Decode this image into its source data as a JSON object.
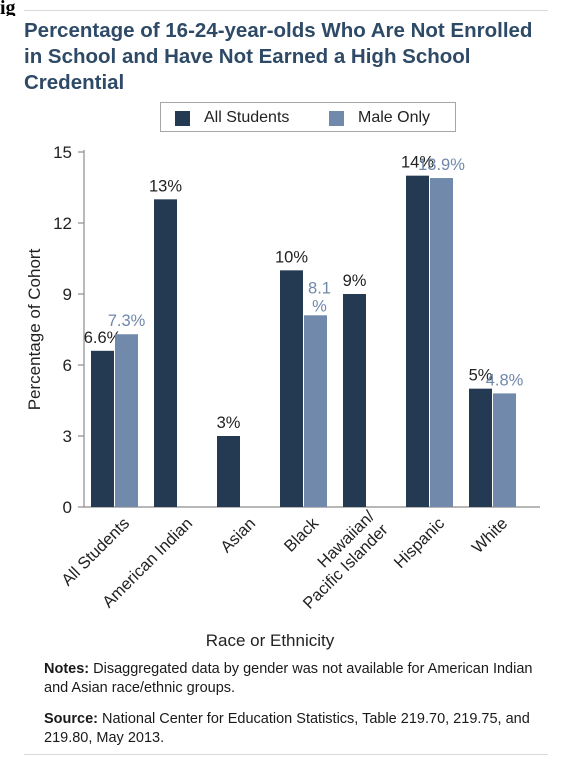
{
  "chart_data": {
    "type": "bar",
    "title": "Percentage of 16-24-year-olds Who Are Not Enrolled in School and Have Not Earned a High School Credential",
    "xlabel": "Race or Ethnicity",
    "ylabel": "Percentage of Cohort",
    "ylim": [
      0,
      15
    ],
    "yticks": [
      0,
      3,
      6,
      9,
      12,
      15
    ],
    "ytick_labels": [
      "0",
      "3",
      "6",
      "9",
      "12",
      "15"
    ],
    "grid": false,
    "legend_position": "top",
    "categories": [
      "All Students",
      "American Indian",
      "Asian",
      "Black",
      "Hawaiian/ Pacific Islander",
      "Hispanic",
      "White"
    ],
    "series": [
      {
        "name": "All Students",
        "color": "#243a52",
        "values": [
          6.6,
          13,
          3,
          10,
          9,
          14,
          5
        ],
        "labels": [
          "6.6%",
          "13%",
          "3%",
          "10%",
          "9%",
          "14%",
          "5%"
        ]
      },
      {
        "name": "Male Only",
        "color": "#7189ab",
        "values": [
          7.3,
          null,
          null,
          8.1,
          null,
          13.9,
          4.8
        ],
        "labels": [
          "7.3%",
          "",
          "",
          "8.1 %",
          "",
          "13.9%",
          "4.8%"
        ]
      }
    ]
  },
  "notes": {
    "label": "Notes:",
    "text": " Disaggregated data by gender was not available for American Indian and Asian race/ethnic groups."
  },
  "source": {
    "label": "Source:",
    "text": " National Center for Education Statistics, Table 219.70, 219.75, and 219.80, May 2013."
  },
  "page_fragment": "ig"
}
